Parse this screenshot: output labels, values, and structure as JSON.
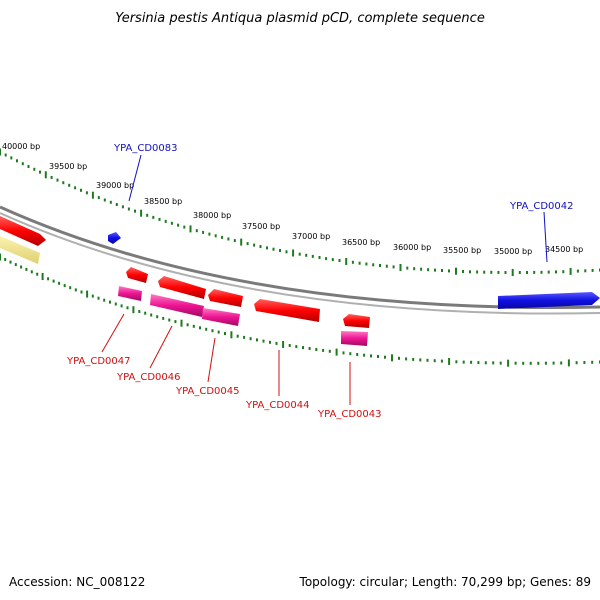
{
  "title": "Yersinia pestis Antiqua plasmid pCD, complete sequence",
  "footer": {
    "accession": "Accession: NC_008122",
    "summary": "Topology: circular; Length: 70,299 bp; Genes: 89"
  },
  "colors": {
    "backbone": "#8a8a8a",
    "tick": "#1f7a1f",
    "forward_label": "#1010c0",
    "reverse_label": "#d01010",
    "forward_gene": "#1010e0",
    "cds_red": "#ff0000",
    "cds_pink": "#ee1493",
    "cds_yellow": "#f0e68c"
  },
  "ticks": [
    {
      "label": "40000 bp"
    },
    {
      "label": "39500 bp"
    },
    {
      "label": "39000 bp"
    },
    {
      "label": "38500 bp"
    },
    {
      "label": "38000 bp"
    },
    {
      "label": "37500 bp"
    },
    {
      "label": "37000 bp"
    },
    {
      "label": "36500 bp"
    },
    {
      "label": "36000 bp"
    },
    {
      "label": "35500 bp"
    },
    {
      "label": "35000 bp"
    },
    {
      "label": "34500 bp"
    }
  ],
  "labels": {
    "top": [
      "YPA_CD0083",
      "YPA_CD0042"
    ],
    "bottom": [
      "YPA_CD0047",
      "YPA_CD0046",
      "YPA_CD0045",
      "YPA_CD0044",
      "YPA_CD0043"
    ]
  }
}
